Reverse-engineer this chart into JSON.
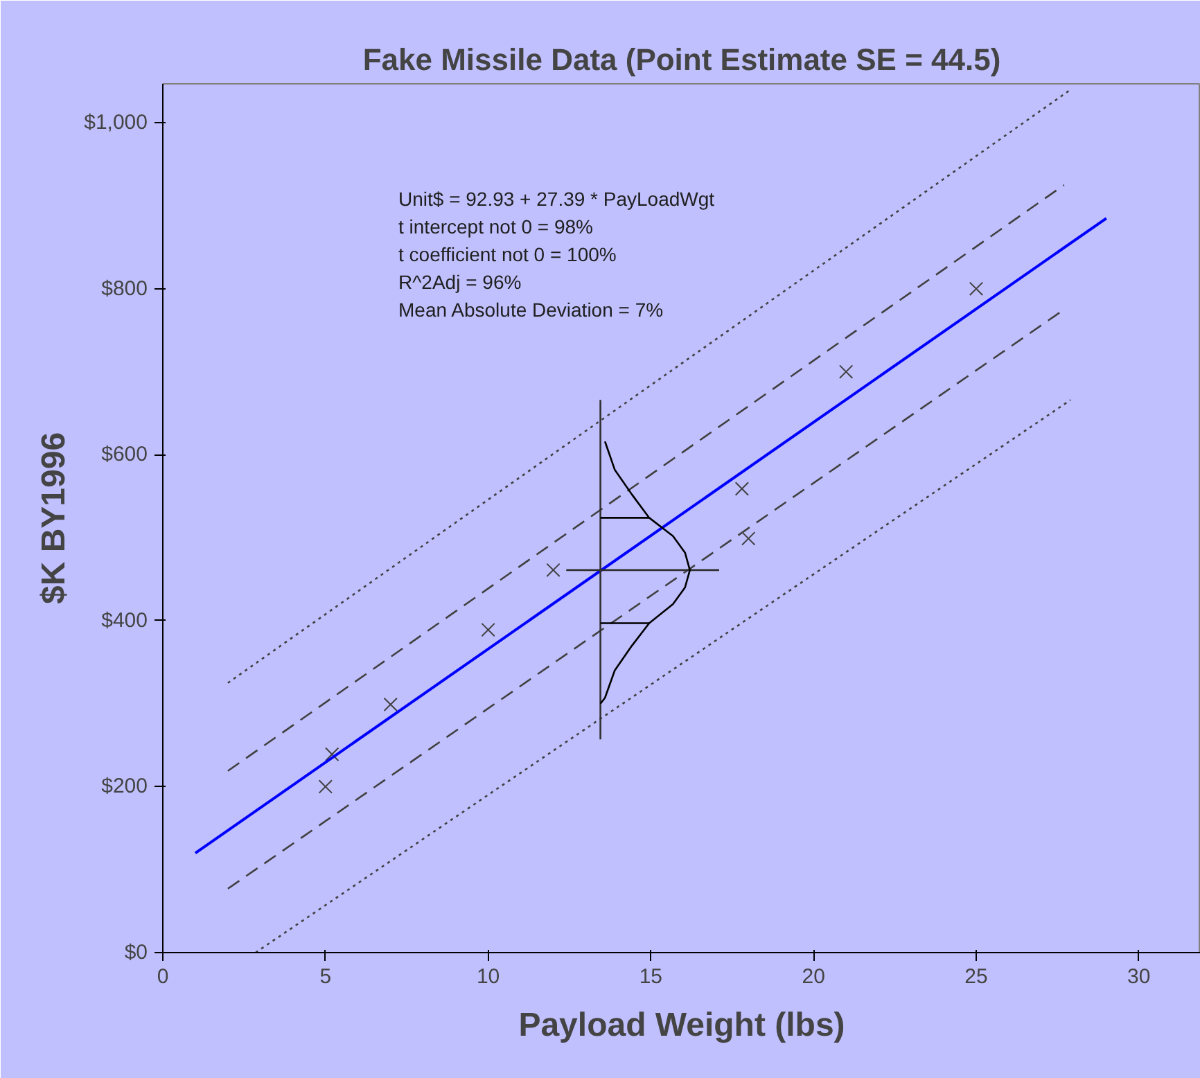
{
  "chart_data": {
    "type": "scatter",
    "title": "Fake Missile Data (Point Estimate SE = 44.5)",
    "xlabel": "Payload Weight (lbs)",
    "ylabel": "$K BY1996",
    "xlim": [
      0,
      31.9
    ],
    "ylim": [
      0,
      1047
    ],
    "xticks": [
      0,
      5,
      10,
      15,
      20,
      25,
      30
    ],
    "yticks": [
      {
        "value": 0,
        "label": "$0"
      },
      {
        "value": 200,
        "label": "$200"
      },
      {
        "value": 400,
        "label": "$400"
      },
      {
        "value": 600,
        "label": "$600"
      },
      {
        "value": 800,
        "label": "$800"
      },
      {
        "value": 1000,
        "label": "$1,000"
      }
    ],
    "grid": false,
    "annotations": [
      "Unit$ = 92.93 + 27.39 * PayLoadWgt",
      "t intercept not 0 = 98%",
      "t coefficient not 0 = 100%",
      "R^2Adj = 96%",
      "Mean Absolute Deviation = 7%"
    ],
    "series": [
      {
        "marker": "cross",
        "color": "#404040",
        "x": [
          5,
          5.2,
          7,
          10,
          12,
          17.8,
          18,
          21,
          25
        ],
        "values": [
          200,
          239,
          299,
          389,
          461,
          559,
          499,
          700,
          800
        ]
      },
      {
        "type": "line",
        "line_style": "solid",
        "color": "#0000ff",
        "x": [
          1,
          29
        ],
        "values": [
          120,
          885
        ]
      },
      {
        "type": "line",
        "line_style": "dashed",
        "color": "#404040",
        "x": [
          2,
          27.7
        ],
        "values": [
          219,
          925
        ]
      },
      {
        "type": "line",
        "line_style": "dashed",
        "color": "#404040",
        "x": [
          2,
          27.7
        ],
        "values": [
          77,
          775
        ]
      },
      {
        "type": "line",
        "line_style": "dotted",
        "color": "#404040",
        "x": [
          2,
          27.9
        ],
        "values": [
          325,
          1040
        ]
      },
      {
        "type": "line",
        "line_style": "dotted",
        "color": "#404040",
        "x": [
          2.85,
          27.9
        ],
        "values": [
          0,
          666
        ]
      },
      {
        "type": "line",
        "line_style": "solid",
        "color": "#303030",
        "x": [
          13.45,
          13.45
        ],
        "values": [
          257,
          666
        ]
      },
      {
        "type": "line",
        "line_style": "solid",
        "color": "#303030",
        "x": [
          12.4,
          17.1
        ],
        "values": [
          461,
          461
        ]
      },
      {
        "type": "line",
        "line_style": "solid",
        "color": "#000000",
        "x": [
          13.45,
          13.59,
          13.89,
          14.42,
          14.95,
          15.68,
          16.05,
          16.2,
          16.05,
          15.68,
          14.95,
          14.42,
          13.89,
          13.59
        ],
        "values": [
          300,
          307,
          340,
          370,
          397,
          420,
          440,
          461,
          482,
          502,
          524,
          552,
          582,
          616
        ]
      },
      {
        "type": "line",
        "line_style": "solid",
        "color": "#000000",
        "x": [
          13.45,
          14.95
        ],
        "values": [
          397,
          397
        ]
      },
      {
        "type": "line",
        "line_style": "solid",
        "color": "#000000",
        "x": [
          13.45,
          14.95
        ],
        "values": [
          524,
          524
        ]
      }
    ]
  }
}
